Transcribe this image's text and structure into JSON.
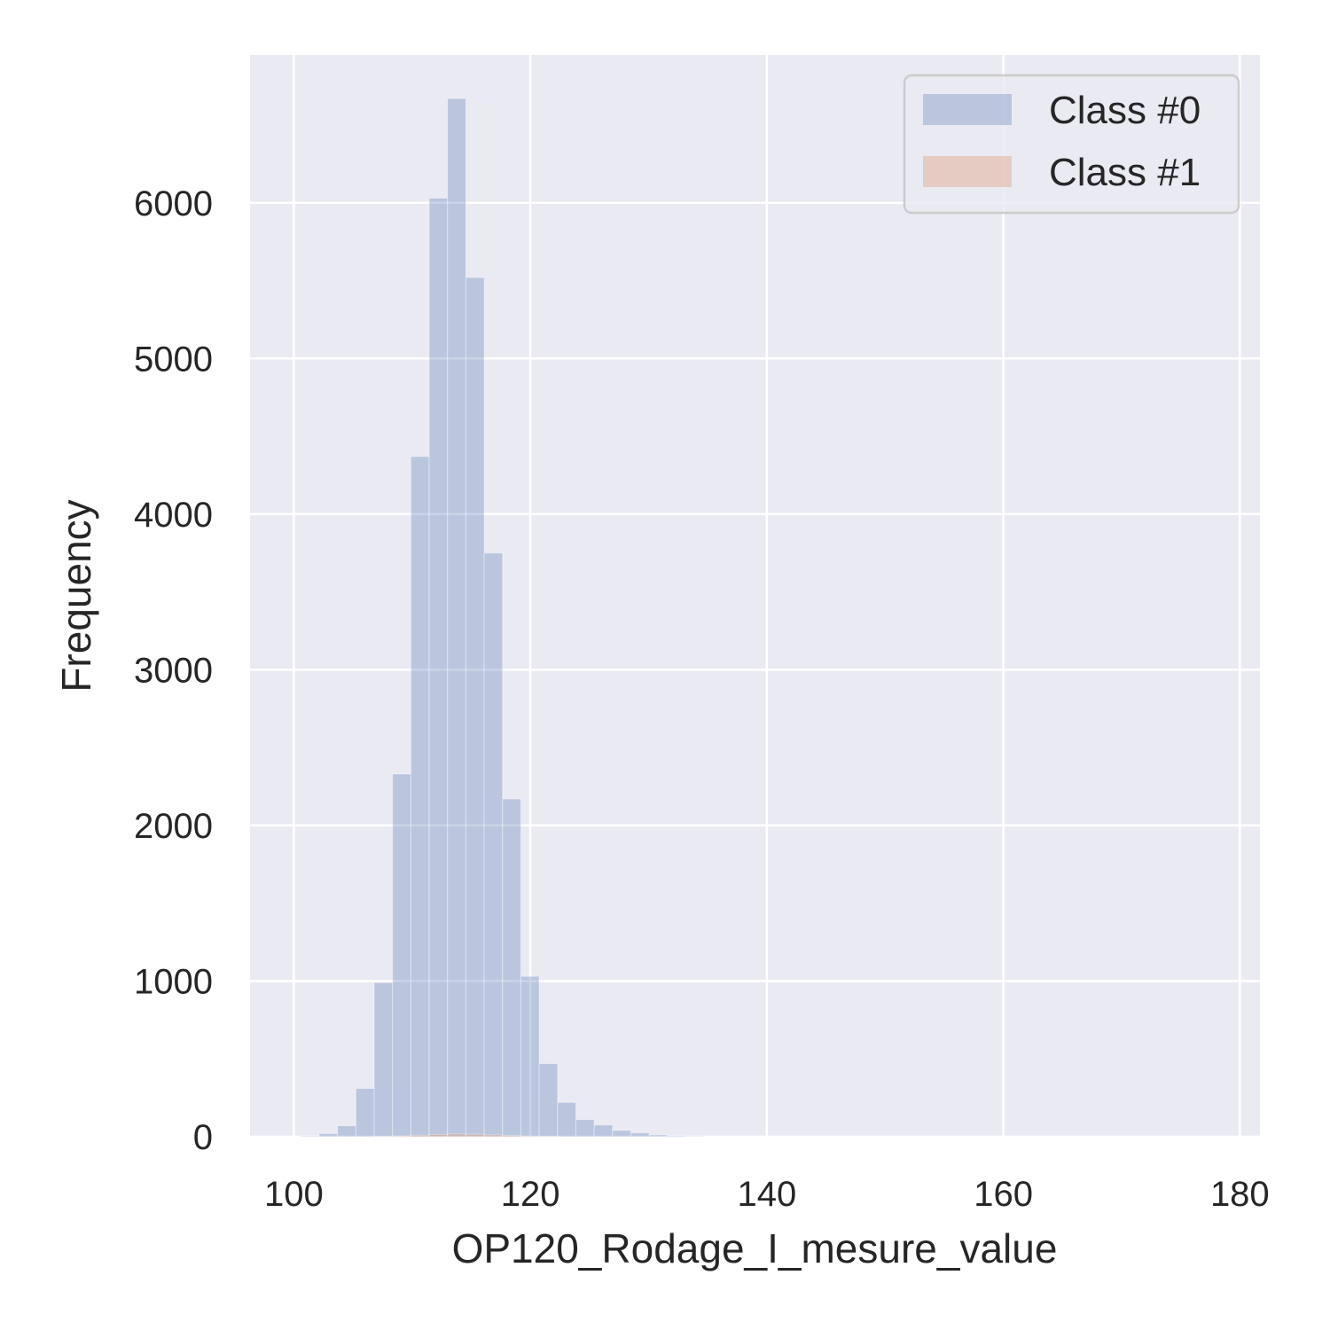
{
  "chart_data": {
    "type": "bar",
    "subtype": "histogram",
    "title": "",
    "xlabel": "OP120_Rodage_I_mesure_value",
    "ylabel": "Frequency",
    "xlim": [
      96.3,
      181.7
    ],
    "ylim": [
      0,
      6950
    ],
    "xticks": [
      100,
      120,
      140,
      160,
      180
    ],
    "yticks": [
      0,
      1000,
      2000,
      3000,
      4000,
      5000,
      6000
    ],
    "grid": true,
    "legend_position": "top-right",
    "bin_width": 1.55,
    "series": [
      {
        "name": "Class #0",
        "color": "#4c72b0",
        "opacity": 0.3,
        "bin_start": [
          100.6,
          102.15,
          103.7,
          105.25,
          106.8,
          108.35,
          109.9,
          111.45,
          113.0,
          114.55,
          116.1,
          117.65,
          119.2,
          120.75,
          122.3,
          123.85,
          125.4,
          126.95,
          128.5,
          130.05,
          131.6,
          133.15
        ],
        "counts": [
          5,
          20,
          70,
          310,
          990,
          2330,
          4370,
          6030,
          6670,
          5520,
          3750,
          2170,
          1030,
          470,
          220,
          110,
          75,
          40,
          25,
          12,
          6,
          3
        ]
      },
      {
        "name": "Class #1",
        "color": "#dd8452",
        "opacity": 0.3,
        "bin_start": [
          106.8,
          108.35,
          109.9,
          111.45,
          113.0,
          114.55,
          116.1,
          117.65,
          119.2,
          120.75
        ],
        "counts": [
          2,
          5,
          10,
          15,
          18,
          16,
          12,
          8,
          4,
          2
        ]
      }
    ]
  }
}
